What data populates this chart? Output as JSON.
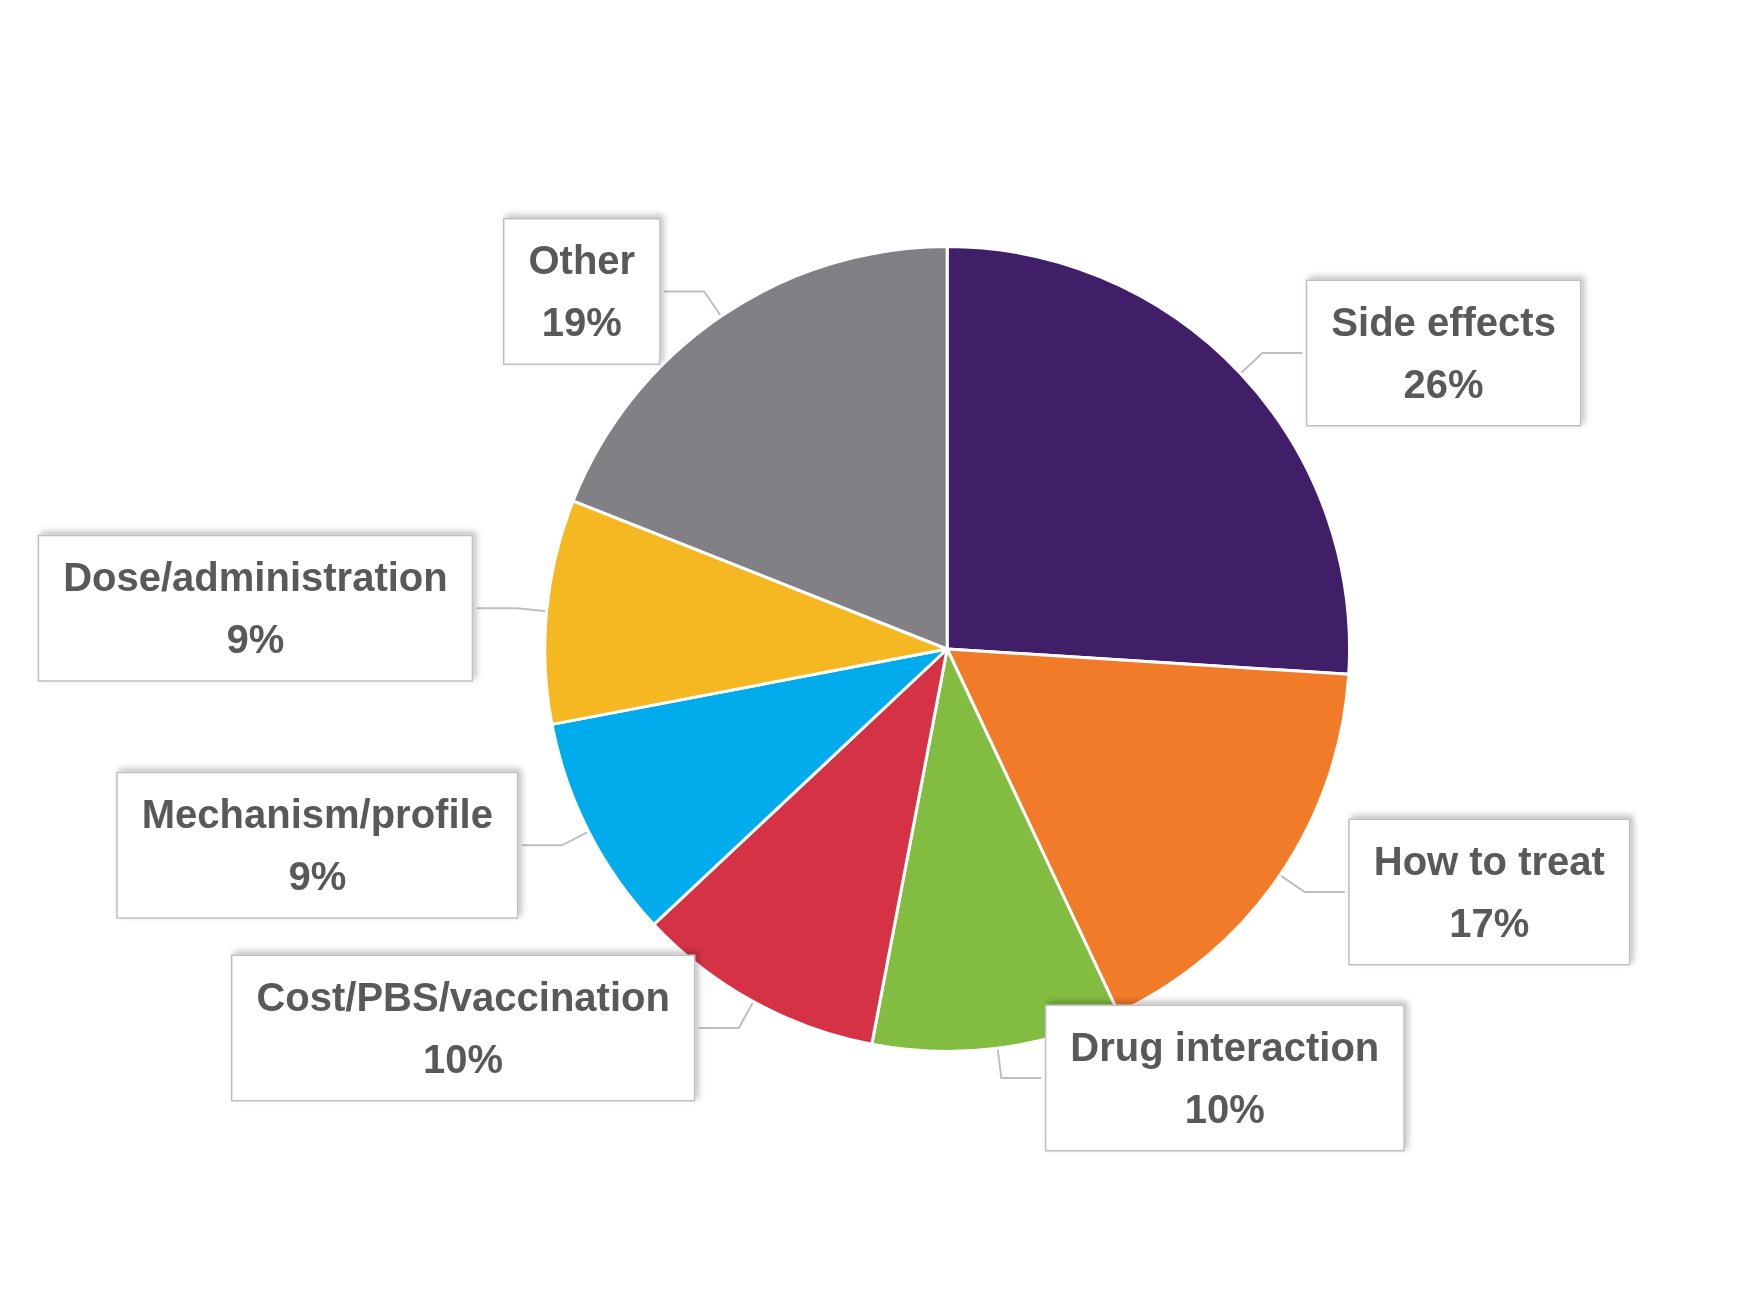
{
  "chart_data": {
    "type": "pie",
    "categories": [
      "Side effects",
      "How to treat",
      "Drug interaction",
      "Cost/PBS/vaccination",
      "Mechanism/profile",
      "Dose/administration",
      "Other"
    ],
    "values": [
      26,
      17,
      10,
      10,
      9,
      9,
      19
    ],
    "colors": [
      "#411e68",
      "#f27b2a",
      "#82bc41",
      "#d63246",
      "#00aceb",
      "#f5b722",
      "#808085"
    ],
    "value_labels": [
      "26%",
      "17%",
      "10%",
      "10%",
      "9%",
      "9%",
      "19%"
    ]
  }
}
